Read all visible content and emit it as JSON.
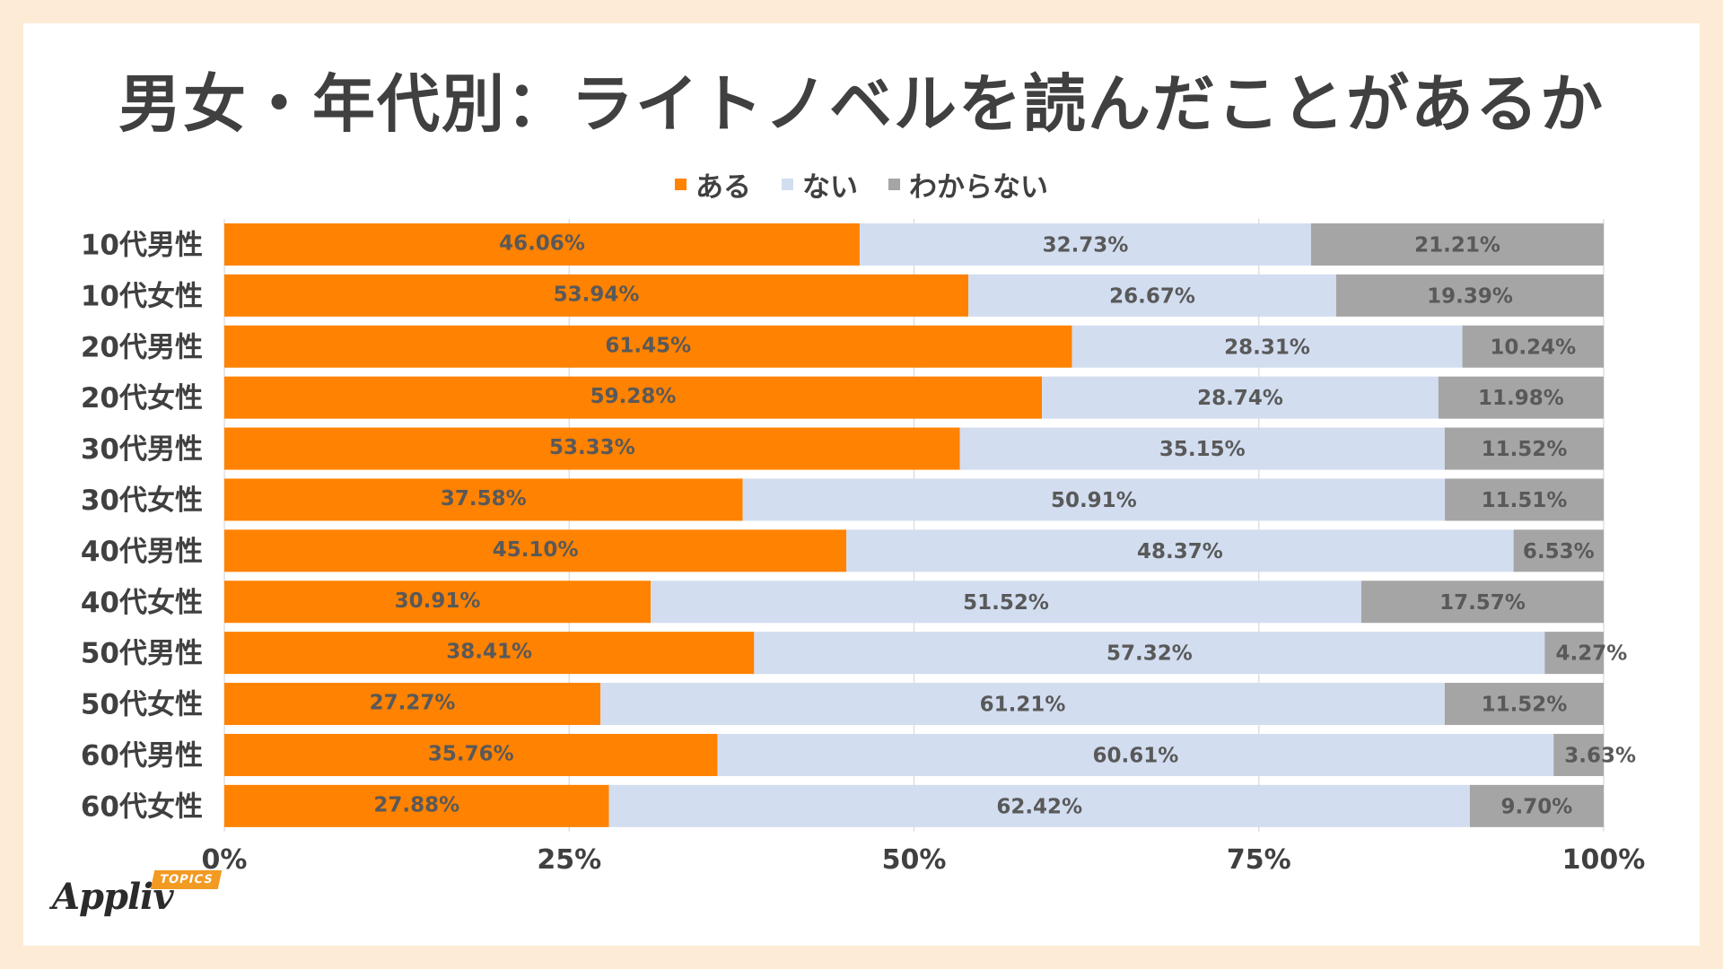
{
  "chart_data": {
    "type": "bar",
    "orientation": "horizontal",
    "stacked": true,
    "title": "男女・年代別：ライトノベルを読んだことがあるか",
    "categories": [
      "10代男性",
      "10代女性",
      "20代男性",
      "20代女性",
      "30代男性",
      "30代女性",
      "40代男性",
      "40代女性",
      "50代男性",
      "50代女性",
      "60代男性",
      "60代女性"
    ],
    "series": [
      {
        "name": "ある",
        "color": "#ff8200",
        "values": [
          46.06,
          53.94,
          61.45,
          59.28,
          53.33,
          37.58,
          45.1,
          30.91,
          38.41,
          27.27,
          35.76,
          27.88
        ],
        "labels": [
          "46.06%",
          "53.94%",
          "61.45%",
          "59.28%",
          "53.33%",
          "37.58%",
          "45.10%",
          "30.91%",
          "38.41%",
          "27.27%",
          "35.76%",
          "27.88%"
        ]
      },
      {
        "name": "ない",
        "color": "#d2ddf0",
        "values": [
          32.73,
          26.67,
          28.31,
          28.74,
          35.15,
          50.91,
          48.37,
          51.52,
          57.32,
          61.21,
          60.61,
          62.42
        ],
        "labels": [
          "32.73%",
          "26.67%",
          "28.31%",
          "28.74%",
          "35.15%",
          "50.91%",
          "48.37%",
          "51.52%",
          "57.32%",
          "61.21%",
          "60.61%",
          "62.42%"
        ]
      },
      {
        "name": "わからない",
        "color": "#a5a5a5",
        "values": [
          21.21,
          19.39,
          10.24,
          11.98,
          11.52,
          11.51,
          6.53,
          17.57,
          4.27,
          11.52,
          3.63,
          9.7
        ],
        "labels": [
          "21.21%",
          "19.39%",
          "10.24%",
          "11.98%",
          "11.52%",
          "11.51%",
          "6.53%",
          "17.57%",
          "4.27%",
          "11.52%",
          "3.63%",
          "9.70%"
        ]
      }
    ],
    "xlim": [
      0,
      100
    ],
    "xticks": [
      0,
      25,
      50,
      75,
      100
    ],
    "xtick_labels": [
      "0%",
      "25%",
      "50%",
      "75%",
      "100%"
    ],
    "grid": true,
    "legend_position": "top-center"
  },
  "colors": {
    "text": "#404040",
    "gridline": "#d9d9d9",
    "background": "#ffffff",
    "frame": "#fdebd5"
  },
  "logo": {
    "name": "Appliv",
    "tag": "TOPICS"
  }
}
